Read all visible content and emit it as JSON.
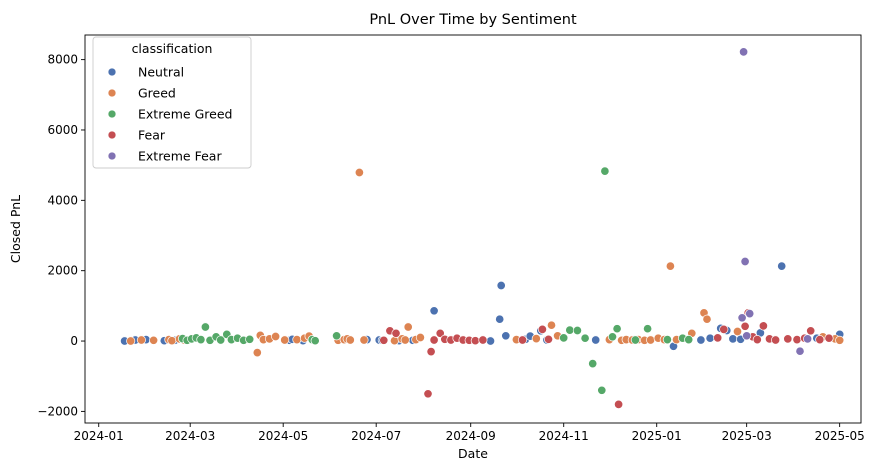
{
  "chart_data": {
    "type": "scatter",
    "title": "PnL Over Time by Sentiment",
    "xlabel": "Date",
    "ylabel": "Closed PnL",
    "xlim": [
      "2023-12-23",
      "2025-05-15"
    ],
    "ylim": [
      -2330,
      8700
    ],
    "x_ticks": [
      "2024-01",
      "2024-03",
      "2024-05",
      "2024-07",
      "2024-09",
      "2024-11",
      "2025-01",
      "2025-03",
      "2025-05"
    ],
    "y_ticks": [
      -2000,
      0,
      2000,
      4000,
      6000,
      8000
    ],
    "grid": false,
    "legend_title": "classification",
    "legend_position": "top-left",
    "series": [
      {
        "name": "Neutral",
        "color": "#4C72B0",
        "points": [
          [
            "2024-01-18",
            0
          ],
          [
            "2024-01-25",
            30
          ],
          [
            "2024-02-01",
            40
          ],
          [
            "2024-02-13",
            10
          ],
          [
            "2024-02-20",
            20
          ],
          [
            "2024-05-05",
            20
          ],
          [
            "2024-05-07",
            50
          ],
          [
            "2024-05-14",
            10
          ],
          [
            "2024-06-25",
            40
          ],
          [
            "2024-07-03",
            30
          ],
          [
            "2024-07-05",
            20
          ],
          [
            "2024-07-16",
            10
          ],
          [
            "2024-07-25",
            20
          ],
          [
            "2024-08-08",
            860
          ],
          [
            "2024-09-14",
            0
          ],
          [
            "2024-09-20",
            620
          ],
          [
            "2024-09-21",
            1580
          ],
          [
            "2024-09-24",
            150
          ],
          [
            "2024-10-07",
            50
          ],
          [
            "2024-10-10",
            140
          ],
          [
            "2024-10-17",
            290
          ],
          [
            "2024-10-21",
            30
          ],
          [
            "2024-11-22",
            30
          ],
          [
            "2025-01-12",
            -150
          ],
          [
            "2025-01-30",
            30
          ],
          [
            "2025-02-05",
            80
          ],
          [
            "2025-02-12",
            360
          ],
          [
            "2025-02-16",
            300
          ],
          [
            "2025-02-20",
            60
          ],
          [
            "2025-02-25",
            50
          ],
          [
            "2025-03-10",
            230
          ],
          [
            "2025-03-24",
            2130
          ],
          [
            "2025-04-16",
            80
          ],
          [
            "2025-05-01",
            190
          ]
        ]
      },
      {
        "name": "Greed",
        "color": "#DD8452",
        "points": [
          [
            "2024-01-22",
            0
          ],
          [
            "2024-01-29",
            30
          ],
          [
            "2024-02-06",
            20
          ],
          [
            "2024-02-16",
            40
          ],
          [
            "2024-02-18",
            10
          ],
          [
            "2024-02-23",
            60
          ],
          [
            "2024-02-26",
            30
          ],
          [
            "2024-04-14",
            -330
          ],
          [
            "2024-04-16",
            160
          ],
          [
            "2024-04-18",
            40
          ],
          [
            "2024-04-22",
            60
          ],
          [
            "2024-04-26",
            130
          ],
          [
            "2024-05-02",
            30
          ],
          [
            "2024-05-10",
            40
          ],
          [
            "2024-05-15",
            80
          ],
          [
            "2024-05-18",
            140
          ],
          [
            "2024-06-06",
            20
          ],
          [
            "2024-06-10",
            40
          ],
          [
            "2024-06-12",
            60
          ],
          [
            "2024-06-14",
            30
          ],
          [
            "2024-06-20",
            4790
          ],
          [
            "2024-06-23",
            30
          ],
          [
            "2024-07-13",
            10
          ],
          [
            "2024-07-18",
            60
          ],
          [
            "2024-07-20",
            30
          ],
          [
            "2024-07-22",
            400
          ],
          [
            "2024-07-27",
            40
          ],
          [
            "2024-07-30",
            100
          ],
          [
            "2024-10-01",
            40
          ],
          [
            "2024-10-14",
            70
          ],
          [
            "2024-10-24",
            450
          ],
          [
            "2024-10-28",
            150
          ],
          [
            "2024-12-01",
            40
          ],
          [
            "2024-12-09",
            20
          ],
          [
            "2024-12-12",
            40
          ],
          [
            "2024-12-16",
            30
          ],
          [
            "2024-12-20",
            40
          ],
          [
            "2024-12-24",
            20
          ],
          [
            "2024-12-28",
            30
          ],
          [
            "2025-01-02",
            80
          ],
          [
            "2025-01-06",
            40
          ],
          [
            "2025-01-10",
            2130
          ],
          [
            "2025-01-14",
            40
          ],
          [
            "2025-01-24",
            220
          ],
          [
            "2025-02-01",
            800
          ],
          [
            "2025-02-03",
            620
          ],
          [
            "2025-02-23",
            270
          ],
          [
            "2025-04-20",
            120
          ],
          [
            "2025-04-28",
            60
          ],
          [
            "2025-05-01",
            20
          ]
        ]
      },
      {
        "name": "Extreme Greed",
        "color": "#55A868",
        "points": [
          [
            "2024-02-25",
            70
          ],
          [
            "2024-02-28",
            20
          ],
          [
            "2024-03-02",
            60
          ],
          [
            "2024-03-05",
            90
          ],
          [
            "2024-03-08",
            40
          ],
          [
            "2024-03-11",
            400
          ],
          [
            "2024-03-14",
            20
          ],
          [
            "2024-03-18",
            120
          ],
          [
            "2024-03-21",
            30
          ],
          [
            "2024-03-25",
            190
          ],
          [
            "2024-03-28",
            40
          ],
          [
            "2024-04-01",
            80
          ],
          [
            "2024-04-05",
            20
          ],
          [
            "2024-04-09",
            50
          ],
          [
            "2024-05-20",
            40
          ],
          [
            "2024-05-22",
            10
          ],
          [
            "2024-06-05",
            150
          ],
          [
            "2024-11-01",
            90
          ],
          [
            "2024-11-05",
            310
          ],
          [
            "2024-11-10",
            300
          ],
          [
            "2024-11-15",
            80
          ],
          [
            "2024-11-20",
            -640
          ],
          [
            "2024-11-26",
            -1400
          ],
          [
            "2024-11-28",
            4830
          ],
          [
            "2024-12-03",
            120
          ],
          [
            "2024-12-06",
            350
          ],
          [
            "2024-12-18",
            30
          ],
          [
            "2024-12-26",
            350
          ],
          [
            "2025-01-08",
            40
          ],
          [
            "2025-01-18",
            80
          ],
          [
            "2025-01-22",
            40
          ]
        ]
      },
      {
        "name": "Fear",
        "color": "#C44E52",
        "points": [
          [
            "2024-07-06",
            20
          ],
          [
            "2024-07-10",
            290
          ],
          [
            "2024-07-14",
            220
          ],
          [
            "2024-08-04",
            -1500
          ],
          [
            "2024-08-06",
            -300
          ],
          [
            "2024-08-08",
            30
          ],
          [
            "2024-08-12",
            220
          ],
          [
            "2024-08-15",
            50
          ],
          [
            "2024-08-19",
            30
          ],
          [
            "2024-08-23",
            80
          ],
          [
            "2024-08-27",
            30
          ],
          [
            "2024-08-31",
            20
          ],
          [
            "2024-09-04",
            10
          ],
          [
            "2024-09-09",
            30
          ],
          [
            "2024-10-05",
            30
          ],
          [
            "2024-10-18",
            330
          ],
          [
            "2024-10-22",
            50
          ],
          [
            "2024-12-07",
            -1800
          ],
          [
            "2025-02-10",
            90
          ],
          [
            "2025-02-14",
            330
          ],
          [
            "2025-02-28",
            420
          ],
          [
            "2025-03-02",
            800
          ],
          [
            "2025-03-05",
            120
          ],
          [
            "2025-03-08",
            40
          ],
          [
            "2025-03-12",
            430
          ],
          [
            "2025-03-16",
            60
          ],
          [
            "2025-03-20",
            30
          ],
          [
            "2025-03-28",
            60
          ],
          [
            "2025-04-03",
            40
          ],
          [
            "2025-04-08",
            80
          ],
          [
            "2025-04-12",
            290
          ],
          [
            "2025-04-18",
            40
          ],
          [
            "2025-04-24",
            80
          ]
        ]
      },
      {
        "name": "Extreme Fear",
        "color": "#8172B3",
        "points": [
          [
            "2025-02-27",
            8220
          ],
          [
            "2025-02-28",
            2260
          ],
          [
            "2025-02-26",
            660
          ],
          [
            "2025-03-03",
            780
          ],
          [
            "2025-03-01",
            150
          ],
          [
            "2025-04-05",
            -290
          ],
          [
            "2025-04-10",
            60
          ]
        ]
      }
    ]
  }
}
